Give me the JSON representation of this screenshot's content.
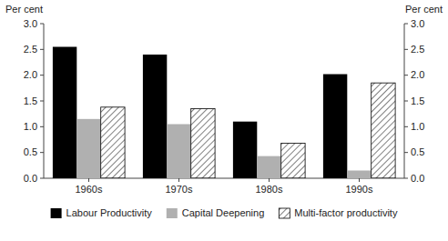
{
  "chart_data": {
    "type": "bar",
    "y_label": "Per cent",
    "y2_label": "Per cent",
    "categories": [
      "1960s",
      "1970s",
      "1980s",
      "1990s"
    ],
    "series": [
      {
        "name": "Labour Productivity",
        "color": "#000000",
        "values": [
          2.55,
          2.4,
          1.1,
          2.02
        ]
      },
      {
        "name": "Capital Deepening",
        "color": "#b0b0b0",
        "values": [
          1.15,
          1.05,
          0.43,
          0.15
        ]
      },
      {
        "name": "Multi-factor productivity",
        "color": "#ffffff",
        "values": [
          1.38,
          1.35,
          0.68,
          1.85
        ]
      }
    ],
    "ylim": [
      0.0,
      3.0
    ],
    "yticks": [
      {
        "value": 0,
        "label": "0.0"
      },
      {
        "value": 0.5,
        "label": "0.5"
      },
      {
        "value": 1,
        "label": "1.0"
      },
      {
        "value": 1.5,
        "label": "1.5"
      },
      {
        "value": 2,
        "label": "2.0"
      },
      {
        "value": 2.5,
        "label": "2.5"
      },
      {
        "value": 3,
        "label": "3.0"
      }
    ],
    "y2lim": [
      0.0,
      3.0
    ],
    "y2ticks": [
      {
        "value": 0,
        "label": "0.0"
      },
      {
        "value": 0.5,
        "label": "0.5"
      },
      {
        "value": 1,
        "label": "1.0"
      },
      {
        "value": 1.5,
        "label": "1.5"
      },
      {
        "value": 2,
        "label": "2.0"
      },
      {
        "value": 2.5,
        "label": "2.5"
      },
      {
        "value": 3,
        "label": "3.0"
      }
    ],
    "grid": false,
    "legend": "bottom"
  }
}
